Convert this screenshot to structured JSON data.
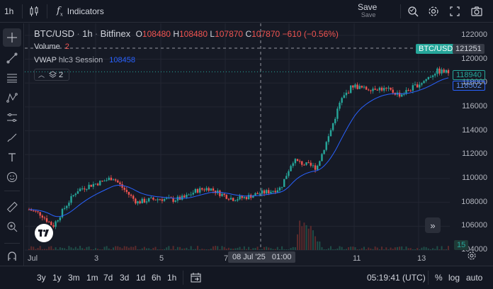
{
  "topbar": {
    "interval": "1h",
    "indicators_label": "Indicators",
    "save_label": "Save",
    "save_sub": "Save"
  },
  "legend": {
    "symbol": "BTC/USD",
    "interval": "1h",
    "exchange": "Bitfinex",
    "open_label": "O",
    "open": "108480",
    "high_label": "H",
    "high": "108480",
    "low_label": "L",
    "low": "107870",
    "close_label": "C",
    "close": "107870",
    "change": "−610 (−0.56%)",
    "volume_label": "Volume",
    "volume_value": "2",
    "vwap_label": "VWAP",
    "vwap_params": "hlc3 Session",
    "vwap_value": "108458",
    "collapsed_count": "2"
  },
  "price_axis": {
    "ticks": [
      "122000",
      "120000",
      "118000",
      "116000",
      "114000",
      "112000",
      "110000",
      "108000",
      "106000",
      "104000"
    ],
    "symbol_tag": "BTC/USD",
    "crosshair_price": "121251",
    "last_price": "118940",
    "vwap_price": "118502",
    "volume_tag": "15",
    "bottom_value": "0000"
  },
  "time_axis": {
    "ticks": [
      "Jul",
      "3",
      "5",
      "7",
      "9",
      "11",
      "13"
    ],
    "crosshair_time": "08 Jul '25   01:00"
  },
  "bottombar": {
    "ranges": [
      "3y",
      "1y",
      "3m",
      "1m",
      "7d",
      "3d",
      "1d",
      "6h",
      "1h"
    ],
    "clock": "05:19:41 (UTC)",
    "percent": "%",
    "log": "log",
    "auto": "auto"
  },
  "colors": {
    "up": "#26a69a",
    "down": "#ef5350",
    "vwap": "#2962ff",
    "background": "#161a25"
  },
  "chart_data": {
    "type": "candlestick",
    "symbol": "BTC/USD",
    "interval": "1h",
    "ylim": [
      104000,
      123000
    ],
    "x_ticks": [
      "Jul",
      "3",
      "5",
      "7",
      "9",
      "11",
      "13"
    ],
    "close_path": [
      {
        "x": "Jul 1",
        "y": 107400
      },
      {
        "x": "Jul 1",
        "y": 107000
      },
      {
        "x": "Jul 2",
        "y": 106000
      },
      {
        "x": "Jul 2",
        "y": 107600
      },
      {
        "x": "Jul 2",
        "y": 109000
      },
      {
        "x": "Jul 3",
        "y": 109400
      },
      {
        "x": "Jul 3",
        "y": 109700
      },
      {
        "x": "Jul 3",
        "y": 110100
      },
      {
        "x": "Jul 4",
        "y": 109000
      },
      {
        "x": "Jul 4",
        "y": 108000
      },
      {
        "x": "Jul 5",
        "y": 108200
      },
      {
        "x": "Jul 5",
        "y": 108300
      },
      {
        "x": "Jul 6",
        "y": 108200
      },
      {
        "x": "Jul 6",
        "y": 108400
      },
      {
        "x": "Jul 7",
        "y": 109000
      },
      {
        "x": "Jul 7",
        "y": 109200
      },
      {
        "x": "Jul 7",
        "y": 108700
      },
      {
        "x": "Jul 8",
        "y": 108300
      },
      {
        "x": "Jul 8",
        "y": 108400
      },
      {
        "x": "Jul 8",
        "y": 108700
      },
      {
        "x": "Jul 9",
        "y": 108900
      },
      {
        "x": "Jul 9",
        "y": 109200
      },
      {
        "x": "Jul 9",
        "y": 111500
      },
      {
        "x": "Jul 10",
        "y": 111200
      },
      {
        "x": "Jul 10",
        "y": 110900
      },
      {
        "x": "Jul 10",
        "y": 113500
      },
      {
        "x": "Jul 10",
        "y": 116500
      },
      {
        "x": "Jul 11",
        "y": 117800
      },
      {
        "x": "Jul 11",
        "y": 117500
      },
      {
        "x": "Jul 12",
        "y": 117600
      },
      {
        "x": "Jul 12",
        "y": 117400
      },
      {
        "x": "Jul 13",
        "y": 117000
      },
      {
        "x": "Jul 13",
        "y": 117600
      },
      {
        "x": "Jul 14",
        "y": 118200
      },
      {
        "x": "Jul 14",
        "y": 119000
      },
      {
        "x": "Jul 14",
        "y": 118900
      }
    ]
  }
}
